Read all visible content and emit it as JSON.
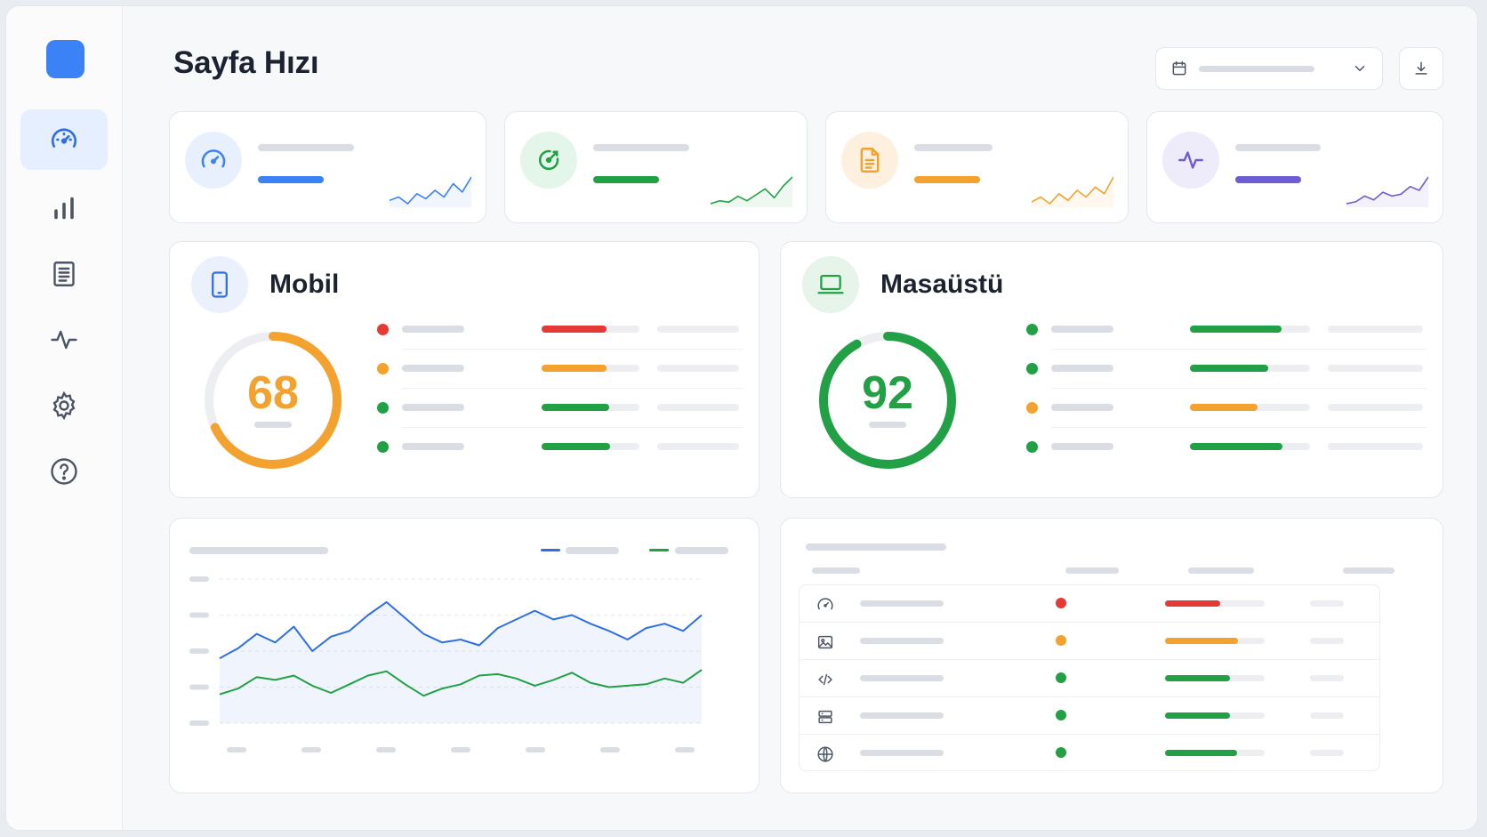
{
  "page": {
    "title": "Sayfa Hızı"
  },
  "toolbar": {
    "date_icon": "calendar-icon",
    "date_chevron": "chevron-down-icon",
    "export_icon": "download-icon"
  },
  "sidebar": {
    "items": [
      {
        "icon": "speedometer-icon",
        "active": true
      },
      {
        "icon": "bar-chart-icon",
        "active": false
      },
      {
        "icon": "document-icon",
        "active": false
      },
      {
        "icon": "activity-icon",
        "active": false
      },
      {
        "icon": "gear-icon",
        "active": false
      },
      {
        "icon": "help-icon",
        "active": false
      }
    ]
  },
  "stat_cards": [
    {
      "icon": "speedometer-icon",
      "accent": "#3b82f6",
      "soft": "#e8f0fe",
      "spark": [
        10,
        12,
        8,
        14,
        11,
        16,
        12,
        20,
        15,
        24
      ]
    },
    {
      "icon": "target-icon",
      "accent": "#22a045",
      "soft": "#e4f5e9",
      "spark": [
        8,
        10,
        9,
        13,
        10,
        14,
        18,
        12,
        20,
        26
      ]
    },
    {
      "icon": "file-icon",
      "accent": "#f4a22f",
      "soft": "#fdf0de",
      "spark": [
        10,
        13,
        9,
        15,
        11,
        17,
        13,
        19,
        15,
        25
      ]
    },
    {
      "icon": "activity-icon",
      "accent": "#6c5dd3",
      "soft": "#eeebfb",
      "spark": [
        8,
        9,
        12,
        10,
        14,
        12,
        13,
        17,
        15,
        22
      ]
    }
  ],
  "devices": [
    {
      "label": "Mobil",
      "icon": "smartphone-icon",
      "score": "68",
      "score_fraction": 0.68,
      "color": "#f4a22f",
      "icon_color": "#2f6fe0",
      "icon_bg": "#eaf1fd",
      "metrics": [
        {
          "status": "#e53935",
          "fill": 0.66,
          "bar": "#e53935"
        },
        {
          "status": "#f4a22f",
          "fill": 0.66,
          "bar": "#f4a22f"
        },
        {
          "status": "#22a045",
          "fill": 0.69,
          "bar": "#22a045"
        },
        {
          "status": "#22a045",
          "fill": 0.7,
          "bar": "#22a045"
        }
      ]
    },
    {
      "label": "Masaüstü",
      "icon": "laptop-icon",
      "score": "92",
      "score_fraction": 0.92,
      "color": "#22a045",
      "icon_color": "#22a045",
      "icon_bg": "#e6f4ea",
      "metrics": [
        {
          "status": "#22a045",
          "fill": 0.76,
          "bar": "#22a045"
        },
        {
          "status": "#22a045",
          "fill": 0.65,
          "bar": "#22a045"
        },
        {
          "status": "#f4a22f",
          "fill": 0.56,
          "bar": "#f4a22f"
        },
        {
          "status": "#22a045",
          "fill": 0.77,
          "bar": "#22a045"
        }
      ]
    }
  ],
  "chart_data": {
    "type": "area",
    "title": "",
    "xlabel": "",
    "ylabel": "",
    "grid": true,
    "legend": "top-right",
    "ylim": [
      0,
      100
    ],
    "x": [
      1,
      2,
      3,
      4,
      5,
      6,
      7,
      8,
      9,
      10,
      11,
      12,
      13,
      14,
      15,
      16,
      17,
      18,
      19,
      20,
      21,
      22,
      23,
      24,
      25,
      26,
      27
    ],
    "series": [
      {
        "color": "#2f6fe0",
        "values": [
          45,
          52,
          62,
          56,
          67,
          50,
          60,
          64,
          75,
          84,
          73,
          62,
          56,
          58,
          54,
          66,
          72,
          78,
          72,
          75,
          69,
          64,
          58,
          66,
          69,
          64,
          75
        ]
      },
      {
        "color": "#22a045",
        "values": [
          20,
          24,
          32,
          30,
          33,
          26,
          21,
          27,
          33,
          36,
          27,
          19,
          24,
          27,
          33,
          34,
          31,
          26,
          30,
          35,
          28,
          25,
          26,
          27,
          31,
          28,
          37
        ]
      }
    ]
  },
  "table": {
    "rows": [
      {
        "icon": "speedometer-icon",
        "status": "#e53935",
        "fill": 0.55,
        "bar": "#e53935"
      },
      {
        "icon": "image-icon",
        "status": "#f4a22f",
        "fill": 0.73,
        "bar": "#f4a22f"
      },
      {
        "icon": "code-icon",
        "status": "#22a045",
        "fill": 0.65,
        "bar": "#22a045"
      },
      {
        "icon": "server-icon",
        "status": "#22a045",
        "fill": 0.65,
        "bar": "#22a045"
      },
      {
        "icon": "globe-icon",
        "status": "#22a045",
        "fill": 0.72,
        "bar": "#22a045"
      }
    ]
  }
}
